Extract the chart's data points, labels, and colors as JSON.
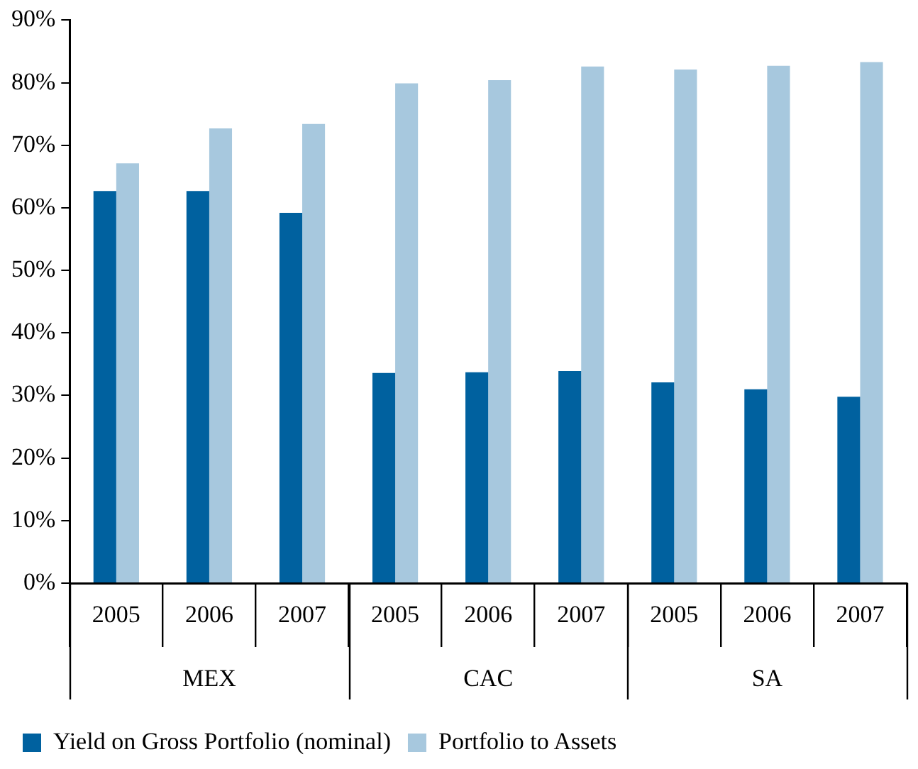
{
  "chart_data": {
    "type": "bar",
    "categories": [
      "2005",
      "2006",
      "2007",
      "2005",
      "2006",
      "2007",
      "2005",
      "2006",
      "2007"
    ],
    "annotations": [
      "MEX",
      "CAC",
      "SA"
    ],
    "series": [
      {
        "name": "Yield on Gross Portfolio (nominal)",
        "color": "#00619f",
        "values": [
          62.7,
          62.7,
          59.2,
          33.6,
          33.7,
          33.9,
          32.1,
          31.0,
          29.8
        ]
      },
      {
        "name": "Portfolio to Assets",
        "color": "#a7c8de",
        "values": [
          67.1,
          72.7,
          73.4,
          79.9,
          80.4,
          82.6,
          82.1,
          82.7,
          83.3
        ]
      }
    ],
    "ylim": [
      0,
      90
    ],
    "yticks": [
      {
        "value": 0,
        "label": "0%"
      },
      {
        "value": 10,
        "label": "10%"
      },
      {
        "value": 20,
        "label": "20%"
      },
      {
        "value": 30,
        "label": "30%"
      },
      {
        "value": 40,
        "label": "40%"
      },
      {
        "value": 50,
        "label": "50%"
      },
      {
        "value": 60,
        "label": "60%"
      },
      {
        "value": 70,
        "label": "70%"
      },
      {
        "value": 80,
        "label": "80%"
      },
      {
        "value": 90,
        "label": "90%"
      }
    ],
    "grid": false,
    "legend": "bottom"
  }
}
